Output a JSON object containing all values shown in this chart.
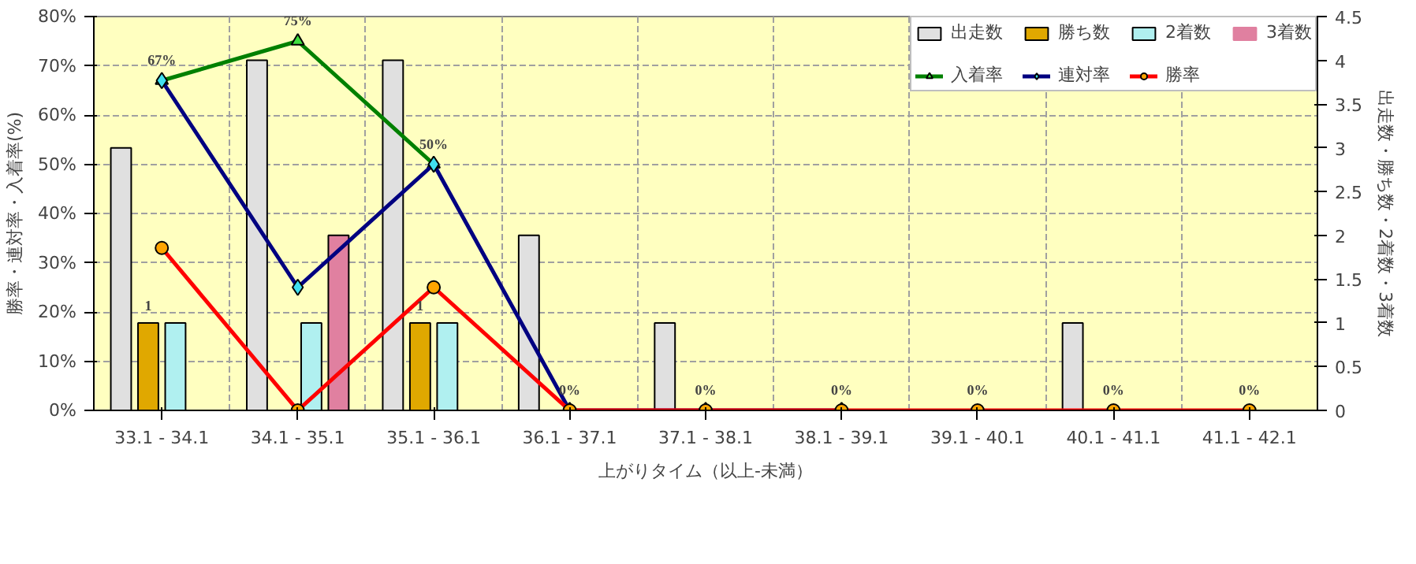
{
  "chart_data": {
    "type": "bar",
    "xlabel": "上がりタイム（以上-未満）",
    "ylabel": "勝率・連対率・入着率(%)",
    "y2label": "出走数・勝ち数・2着数・3着数",
    "categories": [
      "33.1 - 34.1",
      "34.1 - 35.1",
      "35.1 - 36.1",
      "36.1 - 37.1",
      "37.1 - 38.1",
      "38.1 - 39.1",
      "39.1 - 40.1",
      "40.1 - 41.1",
      "41.1 - 42.1"
    ],
    "series": [
      {
        "name": "出走数",
        "axis": "y2",
        "color": "#e0e0e0",
        "values": [
          3,
          4,
          4,
          2,
          1,
          0,
          0,
          1,
          0
        ]
      },
      {
        "name": "勝ち数",
        "axis": "y2",
        "color": "#e0a800",
        "values": [
          1,
          0,
          1,
          0,
          0,
          0,
          0,
          0,
          0
        ],
        "value_labels": [
          "1",
          null,
          "1",
          null,
          null,
          null,
          null,
          null,
          null
        ]
      },
      {
        "name": "2着数",
        "axis": "y2",
        "color": "#b0f0f0",
        "values": [
          1,
          1,
          1,
          0,
          0,
          0,
          0,
          0,
          0
        ]
      },
      {
        "name": "3着数",
        "axis": "y2",
        "color": "#e080a0",
        "values": [
          0,
          2,
          0,
          0,
          0,
          0,
          0,
          0,
          0
        ]
      },
      {
        "name": "入着率",
        "type": "line",
        "color": "#008000",
        "marker": "triangle",
        "values": [
          67,
          75,
          50,
          null,
          null,
          null,
          null,
          null,
          null
        ],
        "value_labels": [
          "67%",
          "75%",
          "50%",
          null,
          null,
          null,
          null,
          null,
          null
        ]
      },
      {
        "name": "連対率",
        "type": "line",
        "color": "#000080",
        "marker": "diamond",
        "values": [
          67,
          25,
          50,
          0,
          0,
          0,
          null,
          null,
          null
        ]
      },
      {
        "name": "勝率",
        "type": "line",
        "color": "#ff0000",
        "marker": "circle",
        "values": [
          33,
          0,
          25,
          0,
          0,
          0,
          0,
          0,
          0
        ],
        "value_labels": [
          null,
          null,
          null,
          "0%",
          "0%",
          "0%",
          "0%",
          "0%",
          "0%"
        ]
      }
    ],
    "ylim": [
      0,
      80
    ],
    "yticks": [
      {
        "value": 0,
        "label": "0%"
      },
      {
        "value": 10,
        "label": "10%"
      },
      {
        "value": 20,
        "label": "20%"
      },
      {
        "value": 30,
        "label": "30%"
      },
      {
        "value": 40,
        "label": "40%"
      },
      {
        "value": 50,
        "label": "50%"
      },
      {
        "value": 60,
        "label": "60%"
      },
      {
        "value": 70,
        "label": "70%"
      },
      {
        "value": 80,
        "label": "80%"
      }
    ],
    "y2lim": [
      0,
      4.5
    ],
    "y2ticks": [
      0,
      0.5,
      1,
      1.5,
      2,
      2.5,
      3,
      3.5,
      4,
      4.5
    ],
    "grid": true,
    "legend": "top right",
    "line_style": "solid"
  }
}
